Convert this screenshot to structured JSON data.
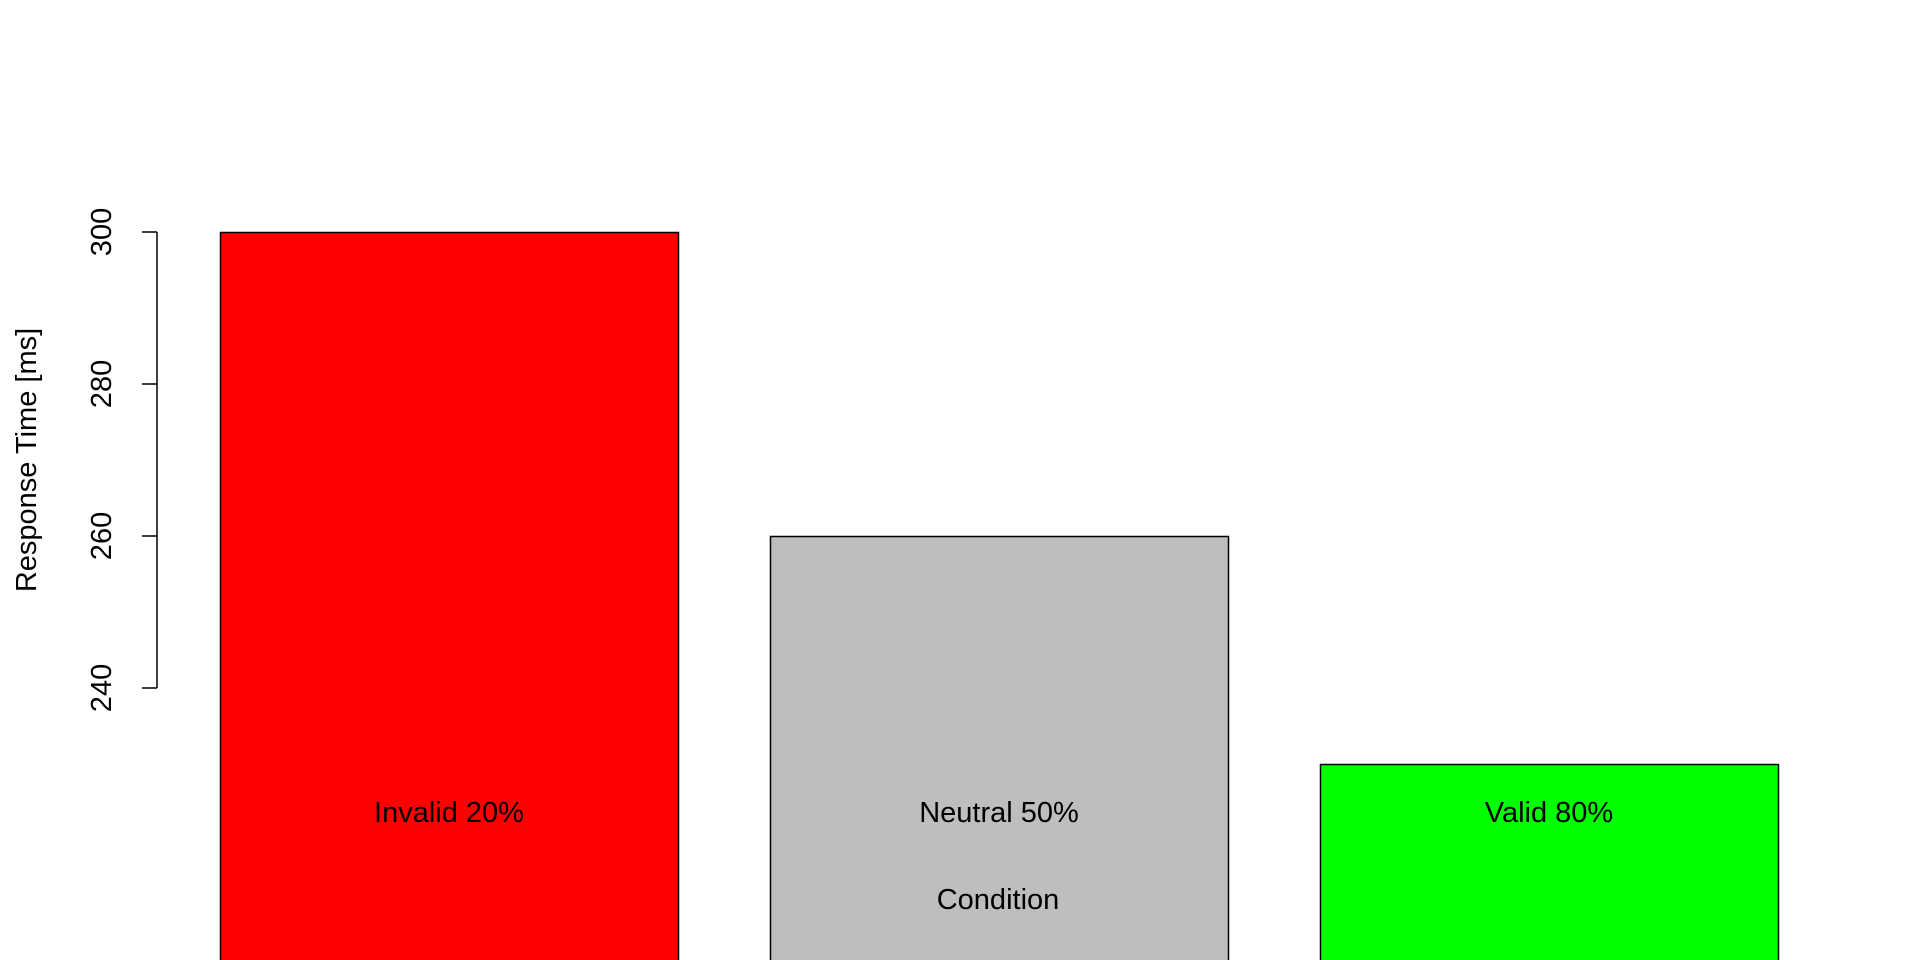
{
  "chart_data": {
    "type": "bar",
    "title": "",
    "xlabel": "Condition",
    "ylabel": "Response Time [ms]",
    "categories": [
      "Invalid 20%",
      "Neutral 50%",
      "Valid 80%"
    ],
    "values": [
      300,
      260,
      230
    ],
    "colors": [
      "#ff0000",
      "#bebebe",
      "#00ff00"
    ],
    "yticks": [
      240,
      260,
      280,
      300
    ],
    "ylim": [
      240,
      300
    ],
    "grid": false
  }
}
